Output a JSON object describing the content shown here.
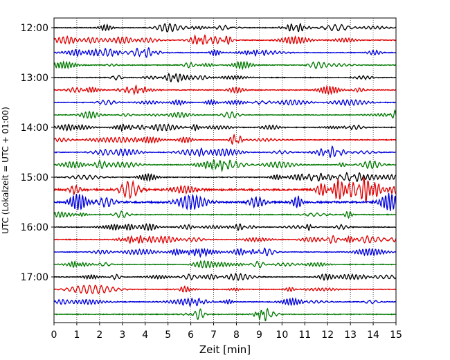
{
  "chart_data": {
    "type": "line",
    "title": "",
    "xlabel": "Zeit  [min]",
    "ylabel": "UTC (Lokalzeit = UTC + 01:00)",
    "xlim": [
      0,
      15
    ],
    "x_ticks": [
      0,
      1,
      2,
      3,
      4,
      5,
      6,
      7,
      8,
      9,
      10,
      11,
      12,
      13,
      14,
      15
    ],
    "x_grid": true,
    "y_ticks": [
      "12:00",
      "13:00",
      "14:00",
      "15:00",
      "16:00",
      "17:00"
    ],
    "y_tick_start_index": 0,
    "rows_per_tick": 4,
    "traces_start": "12:00",
    "trace_interval_min": 15,
    "trace_colors": [
      "#000000",
      "#e00000",
      "#0000dd",
      "#007a00"
    ],
    "traces": [
      {
        "start": "12:00",
        "amplitude": 0.18
      },
      {
        "start": "12:15",
        "amplitude": 0.2
      },
      {
        "start": "12:30",
        "amplitude": 0.18
      },
      {
        "start": "12:45",
        "amplitude": 0.2
      },
      {
        "start": "13:00",
        "amplitude": 0.18
      },
      {
        "start": "13:15",
        "amplitude": 0.22
      },
      {
        "start": "13:30",
        "amplitude": 0.18
      },
      {
        "start": "13:45",
        "amplitude": 0.18
      },
      {
        "start": "14:00",
        "amplitude": 0.18
      },
      {
        "start": "14:15",
        "amplitude": 0.2
      },
      {
        "start": "14:30",
        "amplitude": 0.2
      },
      {
        "start": "14:45",
        "amplitude": 0.22
      },
      {
        "start": "15:00",
        "amplitude": 0.2
      },
      {
        "start": "15:15",
        "amplitude": 0.45
      },
      {
        "start": "15:30",
        "amplitude": 0.45
      },
      {
        "start": "15:45",
        "amplitude": 0.2
      },
      {
        "start": "16:00",
        "amplitude": 0.18
      },
      {
        "start": "16:15",
        "amplitude": 0.2
      },
      {
        "start": "16:30",
        "amplitude": 0.18
      },
      {
        "start": "16:45",
        "amplitude": 0.18
      },
      {
        "start": "17:00",
        "amplitude": 0.18
      },
      {
        "start": "17:15",
        "amplitude": 0.18
      },
      {
        "start": "17:30",
        "amplitude": 0.2
      },
      {
        "start": "17:45",
        "amplitude": 0.2
      }
    ]
  }
}
